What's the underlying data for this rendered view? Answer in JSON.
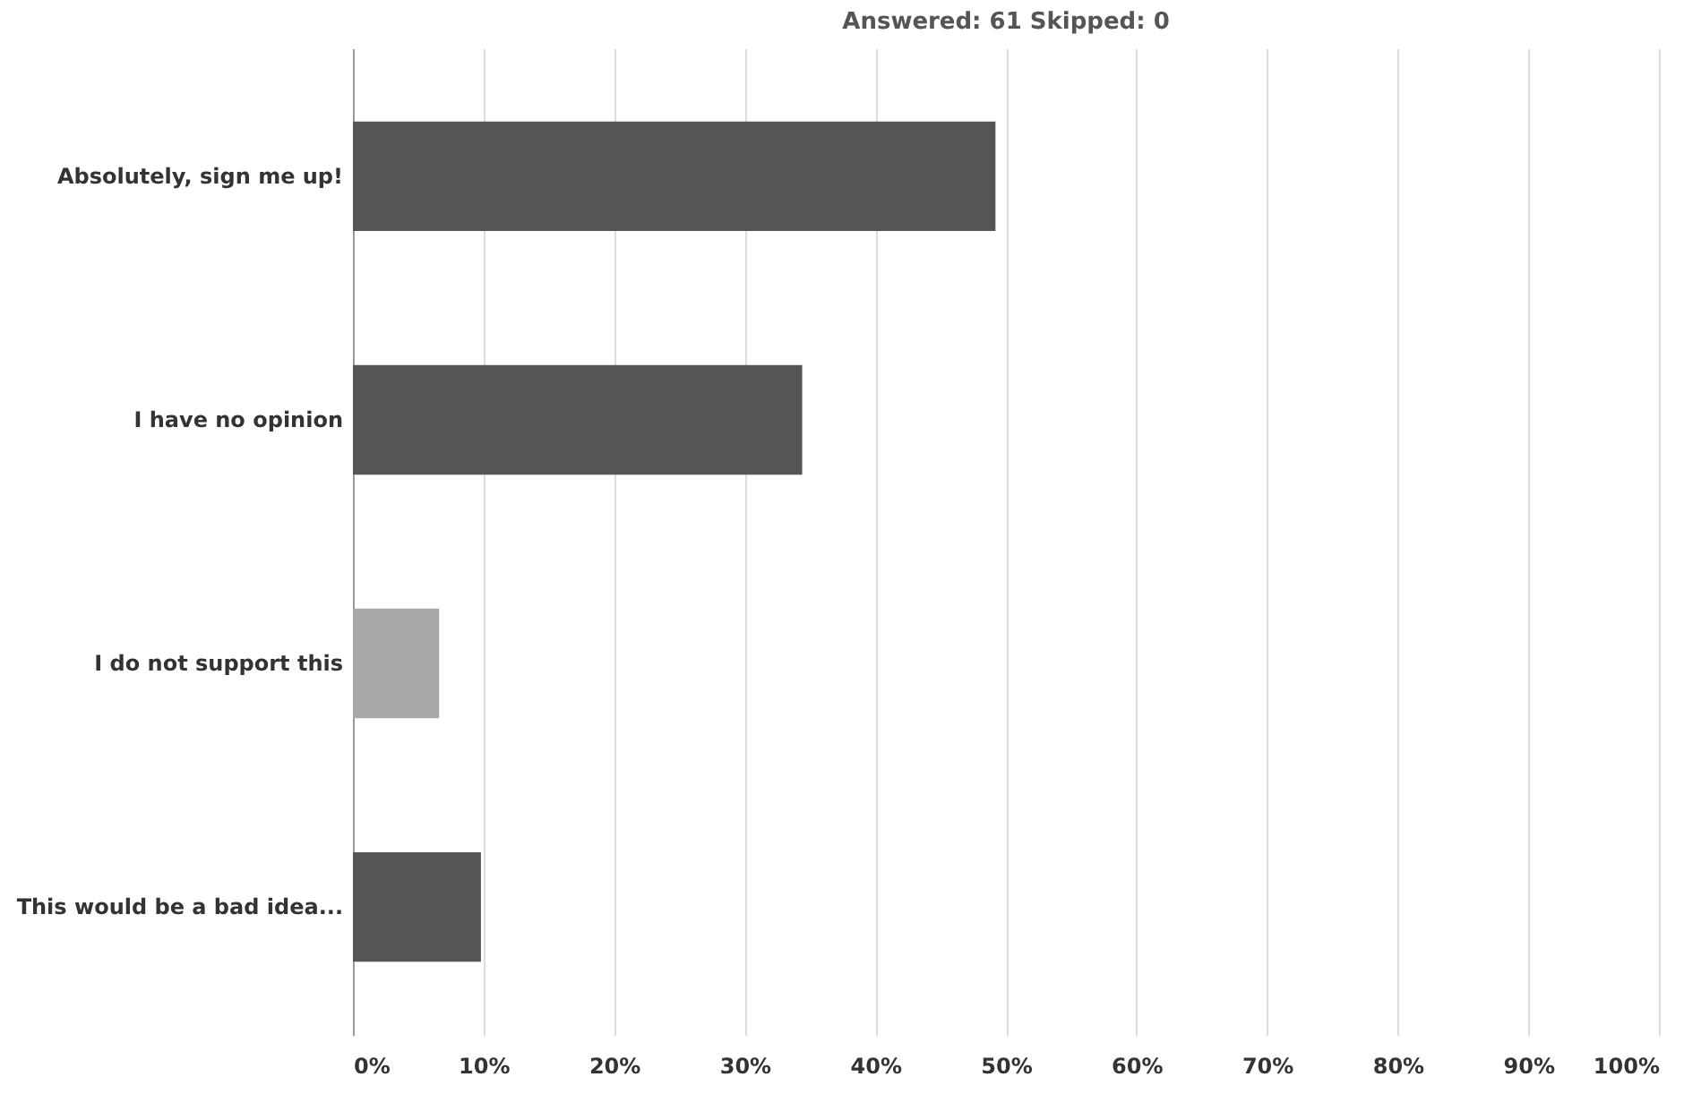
{
  "chart_data": {
    "type": "bar",
    "orientation": "horizontal",
    "title": "Answered: 61    Skipped: 0",
    "categories": [
      "Absolutely, sign me up!",
      "I have no opinion",
      "I do not support this",
      "This would be a bad idea..."
    ],
    "values": [
      49.2,
      34.4,
      6.6,
      9.8
    ],
    "colors": [
      "#555555",
      "#555555",
      "#a8a8a8",
      "#555555"
    ],
    "xlim": [
      0,
      100
    ],
    "xticks": [
      {
        "value": 0,
        "label": "0%"
      },
      {
        "value": 10,
        "label": "10%"
      },
      {
        "value": 20,
        "label": "20%"
      },
      {
        "value": 30,
        "label": "30%"
      },
      {
        "value": 40,
        "label": "40%"
      },
      {
        "value": 50,
        "label": "50%"
      },
      {
        "value": 60,
        "label": "60%"
      },
      {
        "value": 70,
        "label": "70%"
      },
      {
        "value": 80,
        "label": "80%"
      },
      {
        "value": 90,
        "label": "90%"
      },
      {
        "value": 100,
        "label": "100%"
      }
    ],
    "grid": "x"
  }
}
